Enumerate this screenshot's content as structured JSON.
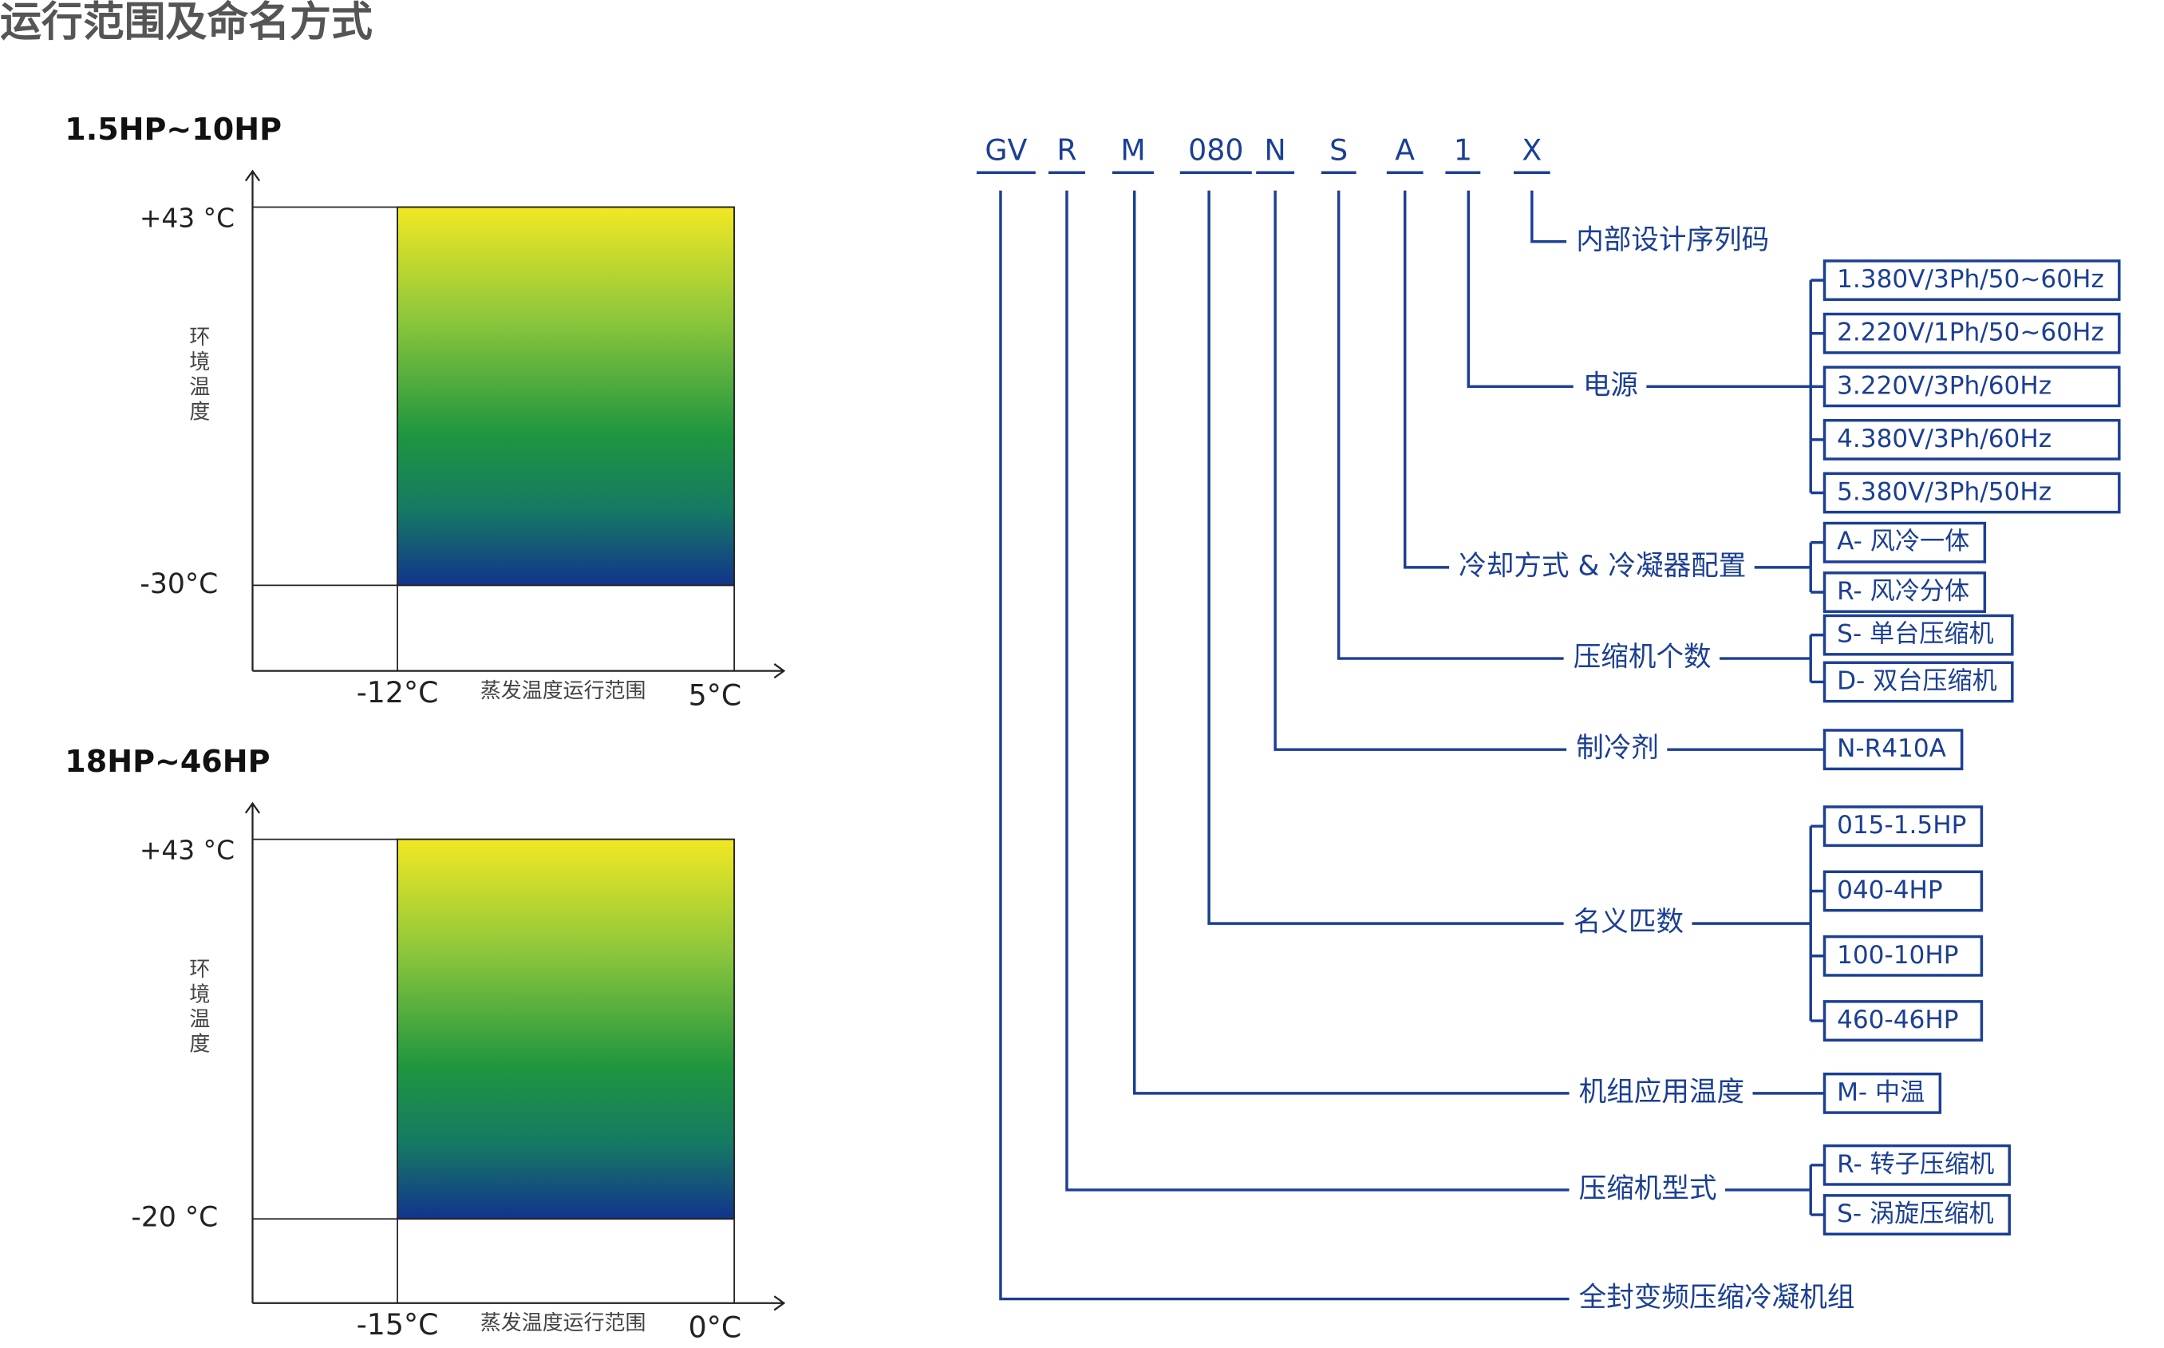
{
  "title": "运行范围及命名方式",
  "ranges": [
    {
      "title": "1.5HP~10HP",
      "y_top": "+43 °C",
      "y_bottom": "-30°C",
      "y_axis": "环境温度",
      "x_left": "-12°C",
      "x_right": "5°C",
      "x_axis": "蒸发温度运行范围"
    },
    {
      "title": "18HP~46HP",
      "y_top": "+43 °C",
      "y_bottom": "-20 °C",
      "y_axis": "环境温度",
      "x_left": "-15°C",
      "x_right": "0°C",
      "x_axis": "蒸发温度运行范围"
    }
  ],
  "code": [
    "GV",
    "R",
    "M",
    "080",
    "N",
    "S",
    "A",
    "1",
    "X"
  ],
  "fields": [
    {
      "label": "内部设计序列码"
    },
    {
      "label": "电源",
      "options": [
        "1.380V/3Ph/50~60Hz",
        "2.220V/1Ph/50~60Hz",
        "3.220V/3Ph/60Hz",
        "4.380V/3Ph/60Hz",
        "5.380V/3Ph/50Hz"
      ]
    },
    {
      "label": "冷却方式 & 冷凝器配置",
      "options": [
        "A- 风冷一体",
        "R- 风冷分体"
      ]
    },
    {
      "label": "压缩机个数",
      "options": [
        "S- 单台压缩机",
        "D- 双台压缩机"
      ]
    },
    {
      "label": "制冷剂",
      "options": [
        "N-R410A"
      ]
    },
    {
      "label": "名义匹数",
      "options": [
        "015-1.5HP",
        "040-4HP",
        "100-10HP",
        "460-46HP"
      ]
    },
    {
      "label": "机组应用温度",
      "options": [
        "M- 中温"
      ]
    },
    {
      "label": "压缩机型式",
      "options": [
        "R- 转子压缩机",
        "S- 涡旋压缩机"
      ]
    },
    {
      "label": "全封变频压缩冷凝机组"
    }
  ]
}
